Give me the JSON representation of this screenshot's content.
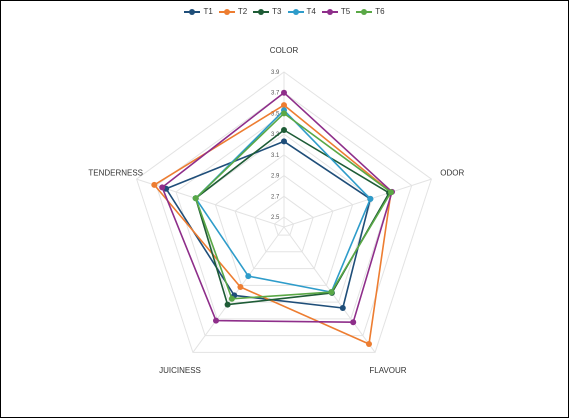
{
  "chart_data": {
    "type": "radar",
    "title": "",
    "axes": [
      "COLOR",
      "ODOR",
      "FLAVOUR",
      "JUICINESS",
      "TENDERNESS"
    ],
    "ticks": [
      "2.5",
      "2.7",
      "2.9",
      "3.1",
      "3.3",
      "3.5",
      "3.7",
      "3.9"
    ],
    "range": [
      2.5,
      3.9
    ],
    "legend_position": "top",
    "grid": true,
    "series": [
      {
        "name": "T1",
        "color": "#1f4e79",
        "values": [
          3.23,
          3.28,
          3.37,
          3.22,
          3.6
        ]
      },
      {
        "name": "T2",
        "color": "#ed7d31",
        "values": [
          3.58,
          3.49,
          3.8,
          3.12,
          3.72
        ]
      },
      {
        "name": "T3",
        "color": "#1e5c36",
        "values": [
          3.34,
          3.47,
          3.19,
          3.33,
          3.3
        ]
      },
      {
        "name": "T4",
        "color": "#2e9cca",
        "values": [
          3.53,
          3.28,
          3.18,
          2.99,
          3.3
        ]
      },
      {
        "name": "T5",
        "color": "#8e2e8a",
        "values": [
          3.7,
          3.5,
          3.54,
          3.52,
          3.64
        ]
      },
      {
        "name": "T6",
        "color": "#5aa846",
        "values": [
          3.5,
          3.49,
          3.18,
          3.26,
          3.3
        ]
      }
    ]
  }
}
